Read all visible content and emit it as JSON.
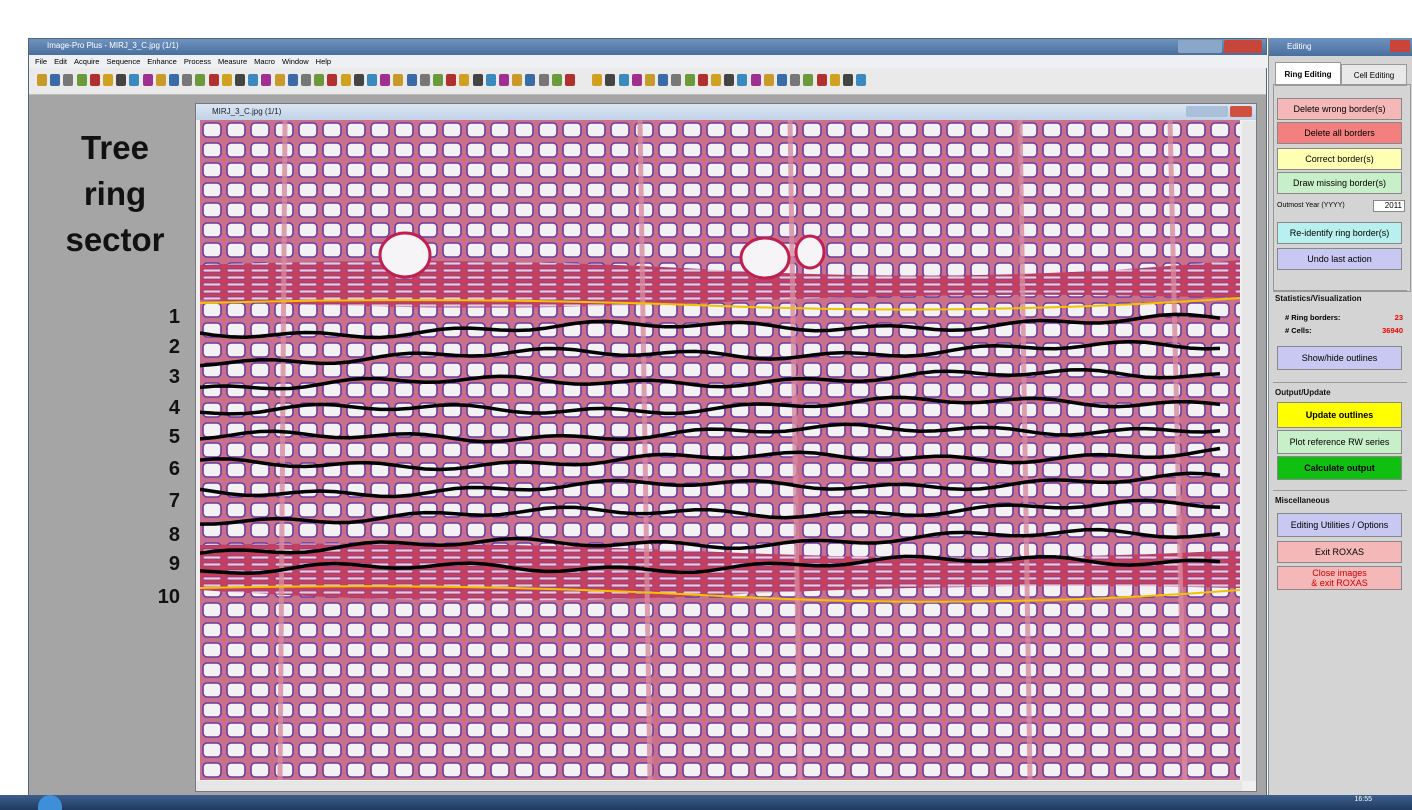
{
  "app": {
    "title": "Image-Pro Plus - MIRJ_3_C.jpg (1/1)",
    "menu": [
      "File",
      "Edit",
      "Acquire",
      "Sequence",
      "Enhance",
      "Process",
      "Measure",
      "Macro",
      "Window",
      "Help"
    ]
  },
  "annotation": {
    "label": [
      "Tree",
      "ring",
      "sector"
    ],
    "rings": [
      "1",
      "2",
      "3",
      "4",
      "5",
      "6",
      "7",
      "8",
      "9",
      "10"
    ]
  },
  "image_window": {
    "title": "MIRJ_3_C.jpg (1/1)"
  },
  "panel": {
    "title": "Editing",
    "tabs": [
      "Ring Editing",
      "Cell Editing"
    ],
    "ring_buttons": [
      "Delete wrong border(s)",
      "Delete all borders",
      "Correct border(s)",
      "Draw missing border(s)"
    ],
    "outmost_label": "Outmost Year (YYYY)",
    "outmost_value": "2011",
    "ring_buttons2": [
      "Re-identify ring border(s)",
      "Undo last action"
    ],
    "stats": {
      "header": "Statistics/Visualization",
      "ring_borders_label": "# Ring borders:",
      "ring_borders_value": "23",
      "cells_label": "# Cells:",
      "cells_value": "36940",
      "button": "Show/hide outlines"
    },
    "output": {
      "header": "Output/Update",
      "buttons": [
        "Update outlines",
        "Plot reference RW series",
        "Calculate output"
      ]
    },
    "misc": {
      "header": "Miscellaneous",
      "buttons": [
        "Editing Utilities / Options",
        "Exit ROXAS"
      ],
      "close": [
        "Close images",
        "& exit ROXAS"
      ]
    }
  },
  "taskbar": {
    "time": "16:55"
  }
}
